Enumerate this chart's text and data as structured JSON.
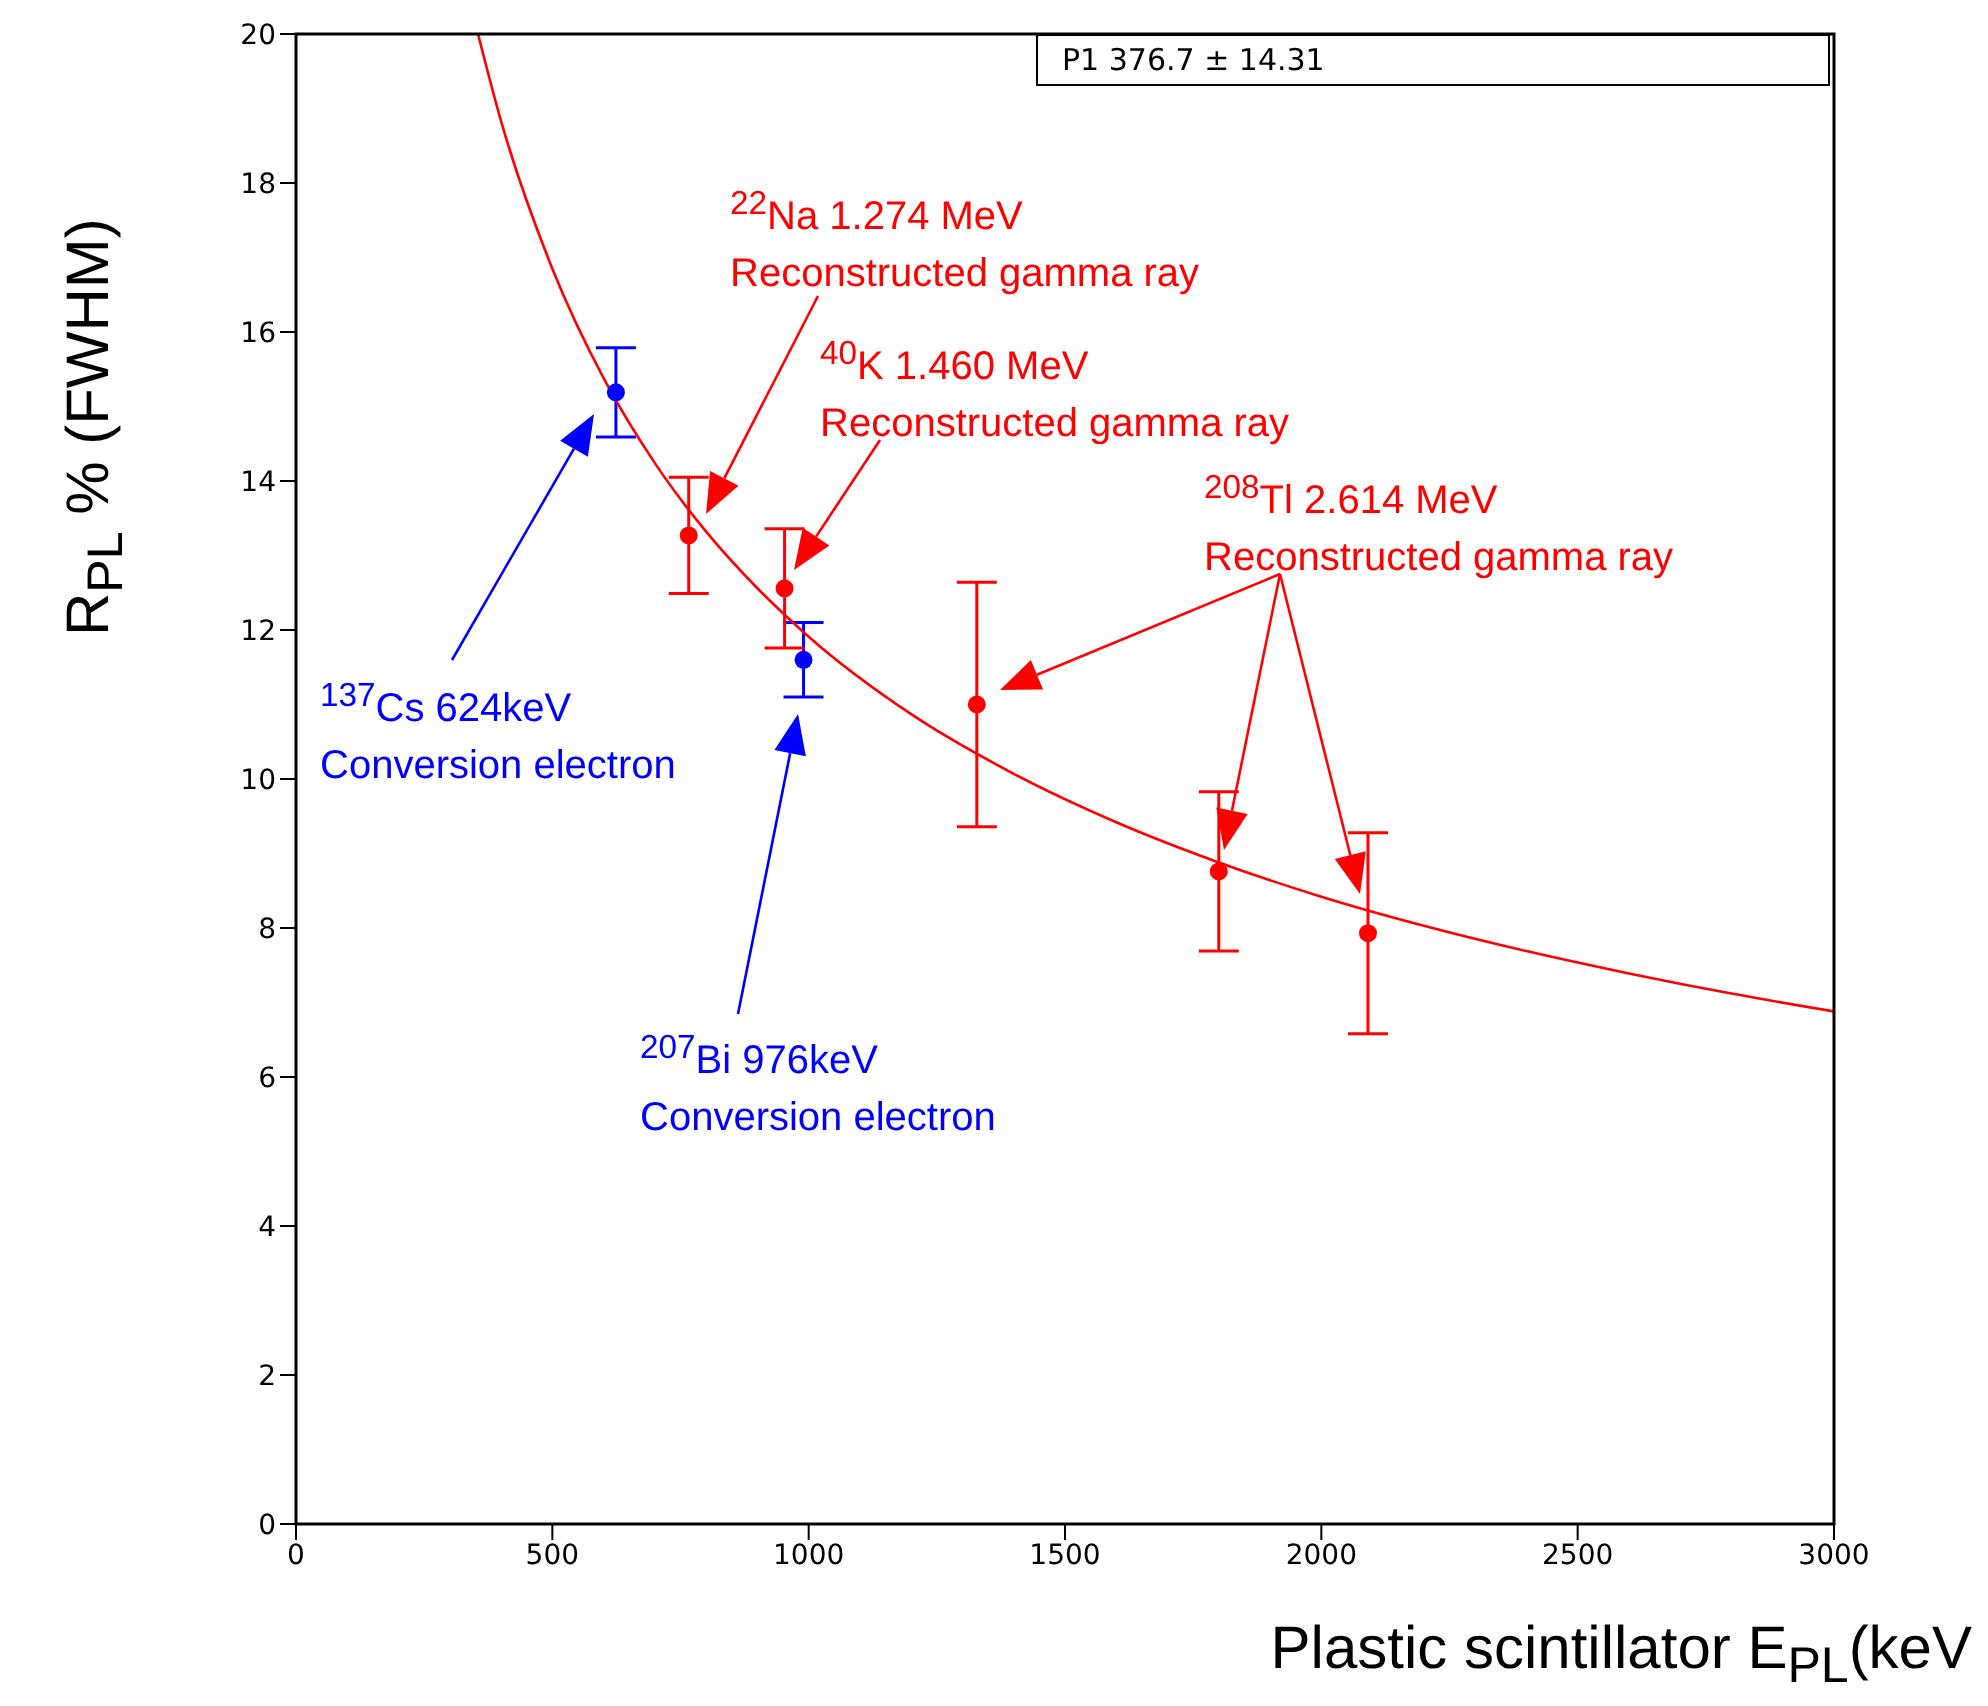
{
  "chart_data": {
    "type": "scatter",
    "xlabel": "Plastic scintillator E$_{PL}$(keV",
    "ylabel": "R$_{PL}$ % (FWHM)",
    "xlim": [
      0,
      3000
    ],
    "xticks": [
      0,
      500,
      1000,
      1500,
      2000,
      2500,
      3000
    ],
    "ylim": [
      0,
      20
    ],
    "yticks": [
      0,
      2,
      4,
      6,
      8,
      10,
      12,
      14,
      16,
      18,
      20
    ],
    "series": [
      {
        "color": "#0000ff",
        "marker": "circle",
        "x": [
          624,
          990
        ],
        "values": [
          15.19,
          11.6
        ],
        "errors": [
          0.6,
          0.5
        ]
      },
      {
        "color": "#ff0000",
        "marker": "circle",
        "x": [
          766,
          953,
          1328,
          1800,
          2091
        ],
        "values": [
          13.27,
          12.56,
          11.0,
          8.76,
          7.93
        ],
        "errors": [
          0.78,
          0.8,
          1.64,
          1.07,
          1.35
        ]
      },
      {
        "type": "line",
        "color": "#ff0000",
        "marker": "none",
        "x": [
          355,
          400,
          500,
          600,
          700,
          800,
          900,
          1000,
          1200,
          1400,
          1600,
          1800,
          2000,
          2200,
          2400,
          2600,
          2800,
          3000
        ],
        "values": [
          20.0,
          18.83,
          16.85,
          15.38,
          14.24,
          13.32,
          12.56,
          11.91,
          10.87,
          10.07,
          9.42,
          8.88,
          8.42,
          8.03,
          7.69,
          7.39,
          7.12,
          6.88
        ]
      }
    ],
    "annotations": [
      "$^{137}$Cs 624keV\nConversion electron",
      "$^{22}$Na 1.274 MeV\nReconstructed gamma ray",
      "$^{40}$K 1.460 MeV\nReconstructed gamma ray",
      "$^{207}$Bi 976keV\nConversion electron",
      "$^{208}$Tl 2.614 MeV\nReconstructed gamma ray",
      "P1 376.7 ± 14.31"
    ]
  }
}
